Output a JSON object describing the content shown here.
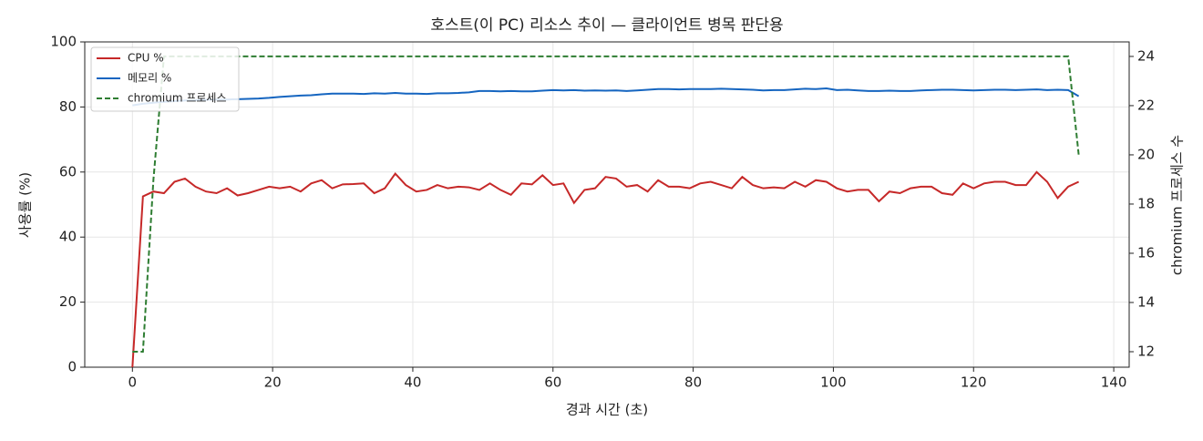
{
  "chart_data": {
    "type": "line",
    "title": "호스트(이 PC) 리소스 추이 — 클라이언트 병목 판단용",
    "x_label": "경과 시간 (초)",
    "y_label": "사용률 (%)",
    "y2_label": "chromium 프로세스 수",
    "x": [
      0,
      1.5,
      3,
      4.5,
      6,
      7.5,
      9,
      10.5,
      12,
      13.5,
      15,
      16.5,
      18,
      19.5,
      21,
      22.5,
      24,
      25.5,
      27,
      28.5,
      30,
      31.5,
      33,
      34.5,
      36,
      37.5,
      39,
      40.5,
      42,
      43.5,
      45,
      46.5,
      48,
      49.5,
      51,
      52.5,
      54,
      55.5,
      57,
      58.5,
      60,
      61.5,
      63,
      64.5,
      66,
      67.5,
      69,
      70.5,
      72,
      73.5,
      75,
      76.5,
      78,
      79.5,
      81,
      82.5,
      84,
      85.5,
      87,
      88.5,
      90,
      91.5,
      93,
      94.5,
      96,
      97.5,
      99,
      100.5,
      102,
      103.5,
      105,
      106.5,
      108,
      109.5,
      111,
      112.5,
      114,
      115.5,
      117,
      118.5,
      120,
      121.5,
      123,
      124.5,
      126,
      127.5,
      129,
      130.5,
      132,
      133.5,
      135
    ],
    "series": [
      {
        "name": "CPU %",
        "color": "#c62828",
        "axis": "y",
        "linestyle": "solid",
        "values": [
          0,
          52.5,
          54,
          53.5,
          57,
          58,
          55.5,
          54,
          53.5,
          55,
          52.8,
          53.5,
          54.5,
          55.5,
          55,
          55.5,
          54,
          56.5,
          57.5,
          55,
          56.2,
          56.3,
          56.5,
          53.5,
          55,
          59.5,
          56,
          54,
          54.5,
          56,
          55,
          55.5,
          55.3,
          54.5,
          56.5,
          54.5,
          53,
          56.5,
          56.2,
          59,
          56,
          56.5,
          50.5,
          54.5,
          55,
          58.5,
          58,
          55.5,
          56,
          54,
          57.5,
          55.5,
          55.5,
          55,
          56.5,
          57,
          56,
          55,
          58.5,
          56,
          55,
          55.3,
          55,
          57,
          55.5,
          57.5,
          57,
          55,
          54,
          54.5,
          54.5,
          51,
          54,
          53.5,
          55,
          55.5,
          55.5,
          53.5,
          53,
          56.5,
          55,
          56.5,
          57,
          57,
          56,
          56,
          60,
          57,
          52,
          55.5,
          57
        ]
      },
      {
        "name": "메모리 %",
        "color": "#1565c0",
        "axis": "y",
        "linestyle": "solid",
        "values": [
          80.5,
          81,
          81.3,
          81.6,
          81.8,
          82,
          82.1,
          82.2,
          82.3,
          82.3,
          82.4,
          82.5,
          82.6,
          82.8,
          83.1,
          83.3,
          83.5,
          83.6,
          83.9,
          84.1,
          84.1,
          84.1,
          84,
          84.2,
          84.1,
          84.3,
          84.1,
          84.1,
          84,
          84.2,
          84.2,
          84.3,
          84.5,
          84.9,
          84.9,
          84.8,
          84.9,
          84.8,
          84.8,
          85,
          85.2,
          85.1,
          85.2,
          85,
          85.1,
          85,
          85.1,
          84.9,
          85.1,
          85.3,
          85.5,
          85.5,
          85.4,
          85.5,
          85.5,
          85.5,
          85.6,
          85.5,
          85.4,
          85.3,
          85.1,
          85.2,
          85.2,
          85.4,
          85.6,
          85.5,
          85.7,
          85.2,
          85.3,
          85.1,
          84.9,
          84.9,
          85,
          84.9,
          84.9,
          85.1,
          85.2,
          85.3,
          85.3,
          85.2,
          85.1,
          85.2,
          85.3,
          85.3,
          85.2,
          85.3,
          85.4,
          85.2,
          85.3,
          85.2,
          83.3
        ]
      },
      {
        "name": "chromium 프로세스",
        "color": "#2e7d32",
        "axis": "y2",
        "linestyle": "dashed",
        "values": [
          12,
          12,
          19,
          24,
          24,
          24,
          24,
          24,
          24,
          24,
          24,
          24,
          24,
          24,
          24,
          24,
          24,
          24,
          24,
          24,
          24,
          24,
          24,
          24,
          24,
          24,
          24,
          24,
          24,
          24,
          24,
          24,
          24,
          24,
          24,
          24,
          24,
          24,
          24,
          24,
          24,
          24,
          24,
          24,
          24,
          24,
          24,
          24,
          24,
          24,
          24,
          24,
          24,
          24,
          24,
          24,
          24,
          24,
          24,
          24,
          24,
          24,
          24,
          24,
          24,
          24,
          24,
          24,
          24,
          24,
          24,
          24,
          24,
          24,
          24,
          24,
          24,
          24,
          24,
          24,
          24,
          24,
          24,
          24,
          24,
          24,
          24,
          24,
          24,
          24,
          20
        ]
      }
    ],
    "xlim": [
      -6.8,
      142.2
    ],
    "xticks": [
      0,
      20,
      40,
      60,
      80,
      100,
      120,
      140
    ],
    "ylim": [
      0,
      100
    ],
    "yticks": [
      0,
      20,
      40,
      60,
      80,
      100
    ],
    "y2lim": [
      11.37,
      24.59
    ],
    "y2ticks": [
      12,
      14,
      16,
      18,
      20,
      22,
      24
    ],
    "grid": true,
    "legend": "upper left"
  }
}
